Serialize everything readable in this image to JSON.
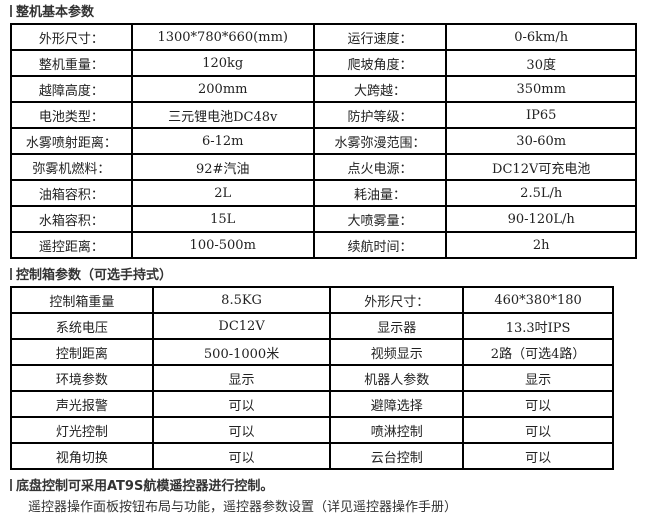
{
  "section1": {
    "title": "整机基本参数",
    "rows": [
      [
        "外形尺寸：",
        "1300*780*660(mm)",
        "运行速度：",
        "0-6km/h"
      ],
      [
        "整机重量：",
        "120kg",
        "爬坡角度：",
        "30度"
      ],
      [
        "越障高度：",
        "200mm",
        "大跨越：",
        "350mm"
      ],
      [
        "电池类型：",
        "三元锂电池DC48v",
        "防护等级：",
        "IP65"
      ],
      [
        "水雾喷射距离：",
        "6-12m",
        "水雾弥漫范围：",
        "30-60m"
      ],
      [
        "弥雾机燃料：",
        "92#汽油",
        "点火电源：",
        "DC12V可充电池"
      ],
      [
        "油箱容积：",
        "2L",
        "耗油量：",
        "2.5L/h"
      ],
      [
        "水箱容积：",
        "15L",
        "大喷雾量：",
        "90-120L/h"
      ],
      [
        "遥控距离：",
        "100-500m",
        "续航时间：",
        "2h"
      ]
    ]
  },
  "section2": {
    "title": "控制箱参数（可选手持式）",
    "rows": [
      [
        "控制箱重量",
        "8.5KG",
        "外形尺寸：",
        "460*380*180"
      ],
      [
        "系统电压",
        "DC12V",
        "显示器",
        "13.3吋IPS"
      ],
      [
        "控制距离",
        "500-1000米",
        "视频显示",
        "2路（可选4路）"
      ],
      [
        "环境参数",
        "显示",
        "机器人参数",
        "显示"
      ],
      [
        "声光报警",
        "可以",
        "避障选择",
        "可以"
      ],
      [
        "灯光控制",
        "可以",
        "喷淋控制",
        "可以"
      ],
      [
        "视角切换",
        "可以",
        "云台控制",
        "可以"
      ]
    ]
  },
  "footer": {
    "title": "底盘控制可采用AT9S航模遥控器进行控制。",
    "note": "遥控器操作面板按钮布局与功能，遥控器参数设置（详见遥控器操作手册）"
  }
}
